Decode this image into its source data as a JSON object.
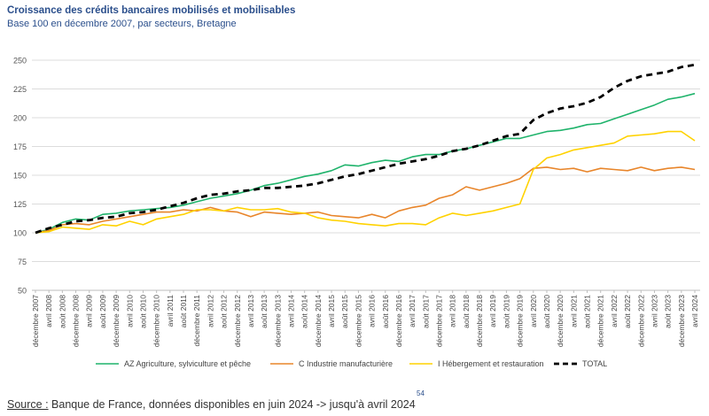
{
  "title": "Croissance des crédits bancaires mobilisés et mobilisables",
  "subtitle": "Base 100 en décembre 2007, par secteurs, Bretagne",
  "source_label": "Source :",
  "source_text": " Banque de France, données disponibles en juin 2024 -> jusqu'à avril 2024",
  "page_number": "54",
  "chart_data": {
    "type": "line",
    "ylim": [
      50,
      250
    ],
    "yticks": [
      50,
      75,
      100,
      125,
      150,
      175,
      200,
      225,
      250
    ],
    "grid": true,
    "legend_position": "bottom",
    "x_labels": [
      "décembre 2007",
      "avril 2008",
      "août 2008",
      "décembre 2008",
      "avril 2009",
      "août 2009",
      "décembre 2009",
      "avril 2010",
      "août 2010",
      "décembre 2010",
      "avril 2011",
      "août 2011",
      "décembre 2011",
      "avril 2012",
      "août 2012",
      "décembre 2012",
      "avril 2013",
      "août 2013",
      "décembre 2013",
      "avril 2014",
      "août 2014",
      "décembre 2014",
      "avril 2015",
      "août 2015",
      "décembre 2015",
      "avril 2016",
      "août 2016",
      "décembre 2016",
      "avril 2017",
      "août 2017",
      "décembre 2017",
      "avril 2018",
      "août 2018",
      "décembre 2018",
      "avril 2019",
      "août 2019",
      "décembre 2019",
      "avril 2020",
      "août 2020",
      "décembre 2020",
      "avril 2021",
      "août 2021",
      "décembre 2021",
      "avril 2022",
      "août 2022",
      "décembre 2022",
      "avril 2023",
      "août 2023",
      "décembre 2023",
      "avril 2024"
    ],
    "series": [
      {
        "name": "AZ Agriculture, sylviculture et pêche",
        "color": "#1fb36b",
        "dash": false,
        "values": [
          100,
          103,
          109,
          112,
          111,
          116,
          117,
          119,
          120,
          121,
          122,
          124,
          127,
          130,
          132,
          134,
          137,
          141,
          143,
          146,
          149,
          151,
          154,
          159,
          158,
          161,
          163,
          162,
          166,
          168,
          168,
          171,
          173,
          176,
          179,
          182,
          182,
          185,
          188,
          189,
          191,
          194,
          195,
          199,
          203,
          207,
          211,
          216,
          218,
          221
        ]
      },
      {
        "name": "C Industrie manufacturière",
        "color": "#e8852a",
        "dash": false,
        "values": [
          100,
          102,
          107,
          108,
          107,
          110,
          112,
          114,
          116,
          118,
          118,
          120,
          119,
          122,
          119,
          118,
          114,
          118,
          117,
          116,
          117,
          118,
          115,
          114,
          113,
          116,
          113,
          119,
          122,
          124,
          130,
          133,
          140,
          137,
          140,
          143,
          147,
          156,
          157,
          155,
          156,
          153,
          156,
          155,
          154,
          157,
          154,
          156,
          157,
          155
        ]
      },
      {
        "name": "I Hébergement et restauration",
        "color": "#ffd200",
        "dash": false,
        "values": [
          100,
          101,
          105,
          104,
          103,
          107,
          106,
          110,
          107,
          112,
          114,
          116,
          120,
          120,
          119,
          122,
          120,
          120,
          121,
          118,
          117,
          113,
          111,
          110,
          108,
          107,
          106,
          108,
          108,
          107,
          113,
          117,
          115,
          117,
          119,
          122,
          125,
          155,
          165,
          168,
          172,
          174,
          176,
          178,
          184,
          185,
          186,
          188,
          188,
          180
        ]
      },
      {
        "name": "TOTAL",
        "color": "#000000",
        "dash": true,
        "values": [
          100,
          104,
          107,
          110,
          111,
          113,
          114,
          117,
          118,
          120,
          123,
          126,
          130,
          133,
          134,
          136,
          137,
          139,
          139,
          140,
          141,
          143,
          146,
          149,
          151,
          154,
          157,
          160,
          162,
          164,
          167,
          171,
          173,
          176,
          180,
          184,
          186,
          198,
          204,
          208,
          210,
          213,
          218,
          226,
          232,
          236,
          238,
          240,
          244,
          246
        ]
      }
    ]
  }
}
